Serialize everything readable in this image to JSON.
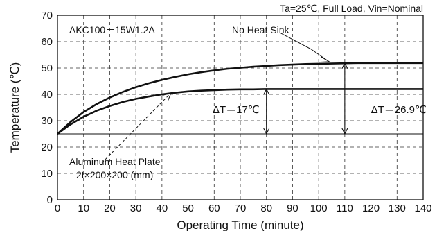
{
  "chart_data": {
    "type": "line",
    "title": "",
    "model_label": "AKC100－15W1.2A",
    "conditions": "Ta=25℃, Full Load, Vin=Nominal",
    "xlabel": "Operating Time (minute)",
    "ylabel": "Temperature (℃)",
    "xlim": [
      0,
      140
    ],
    "ylim": [
      0,
      70
    ],
    "xticks": [
      0,
      10,
      20,
      30,
      40,
      50,
      60,
      70,
      80,
      90,
      100,
      110,
      120,
      130,
      140
    ],
    "yticks": [
      0,
      10,
      20,
      30,
      40,
      50,
      60,
      70
    ],
    "grid": true,
    "ambient": 25,
    "x": [
      0,
      5,
      10,
      15,
      20,
      25,
      30,
      35,
      40,
      45,
      50,
      55,
      60,
      65,
      70,
      75,
      80,
      85,
      90,
      95,
      100,
      105,
      110,
      115,
      120,
      125,
      130,
      135,
      140
    ],
    "series": [
      {
        "name": "No Heat Sink",
        "values": [
          25.0,
          29.5,
          33.3,
          36.3,
          38.8,
          40.9,
          42.7,
          44.2,
          45.5,
          46.6,
          47.6,
          48.4,
          49.1,
          49.7,
          50.1,
          50.5,
          50.8,
          51.1,
          51.3,
          51.5,
          51.6,
          51.7,
          51.8,
          51.9,
          51.9,
          51.9,
          51.9,
          51.9,
          51.9
        ]
      },
      {
        "name": "Aluminum Heat Plate",
        "values": [
          25.0,
          28.6,
          31.5,
          33.8,
          35.6,
          37.1,
          38.3,
          39.2,
          40.0,
          40.6,
          41.1,
          41.4,
          41.6,
          41.8,
          41.9,
          41.9,
          42.0,
          42.0,
          42.0,
          42.0,
          42.0,
          42.0,
          42.0,
          42.0,
          42.0,
          42.0,
          42.0,
          42.0,
          42.0
        ]
      }
    ],
    "annotations": [
      {
        "text": "ΔT＝17℃",
        "x": 80,
        "y_from": 25,
        "y_to": 42
      },
      {
        "text": "ΔT＝26.9℃",
        "x": 110,
        "y_from": 25,
        "y_to": 51.9
      }
    ],
    "labels": {
      "no_heat_sink": "No Heat Sink",
      "aluminum_line1": "Aluminum Heat Plate",
      "aluminum_line2": "2t×200×200 (mm)"
    }
  }
}
